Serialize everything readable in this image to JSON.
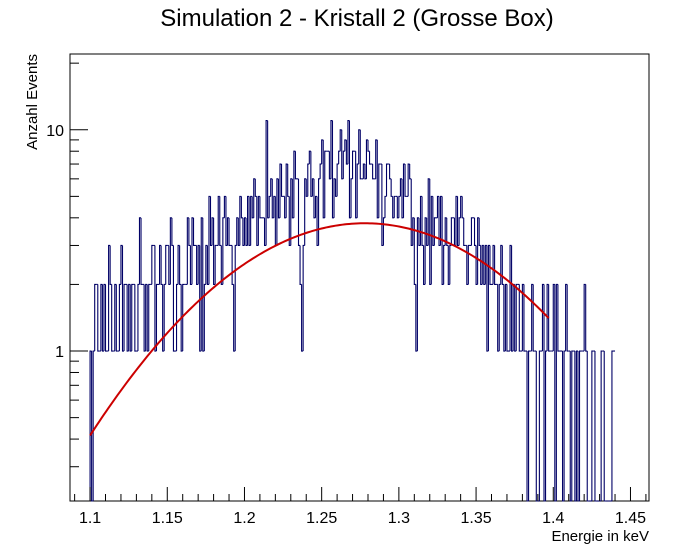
{
  "chart_data": {
    "type": "histogram",
    "title": "Simulation 2 - Kristall 2 (Grosse Box)",
    "xlabel": "Energie in keV",
    "ylabel": "Anzahl Events",
    "xlim": [
      1.087,
      1.462
    ],
    "ylim": [
      0.21,
      22
    ],
    "y_scale": "log",
    "grid": false,
    "x_ticks": [
      "1.1",
      "1.15",
      "1.2",
      "1.25",
      "1.3",
      "1.35",
      "1.4",
      "1.45"
    ],
    "y_ticks": [
      "1",
      "10"
    ],
    "bin_width": 0.001,
    "x_start": 1.1,
    "x_end": 1.462,
    "counts": [
      1,
      0,
      1,
      2,
      2,
      1,
      1,
      2,
      1,
      2,
      1,
      1,
      3,
      2,
      1,
      1,
      2,
      1,
      1,
      2,
      3,
      1,
      2,
      2,
      1,
      2,
      1,
      2,
      2,
      1,
      1,
      2,
      4,
      2,
      2,
      1,
      2,
      1,
      2,
      2,
      3,
      3,
      1,
      2,
      2,
      3,
      2,
      1,
      2,
      3,
      3,
      2,
      4,
      3,
      1,
      1,
      2,
      3,
      2,
      1,
      2,
      2,
      2,
      4,
      3,
      2,
      4,
      3,
      3,
      2,
      3,
      1,
      4,
      1,
      2,
      3,
      2,
      5,
      3,
      4,
      2,
      3,
      3,
      5,
      3,
      2,
      4,
      5,
      3,
      4,
      3,
      3,
      2,
      1,
      3,
      4,
      3,
      5,
      4,
      3,
      4,
      3,
      5,
      3,
      5,
      4,
      6,
      5,
      3,
      5,
      4,
      4,
      4,
      3,
      11,
      4,
      5,
      6,
      4,
      5,
      3,
      6,
      4,
      7,
      5,
      5,
      4,
      7,
      5,
      3,
      6,
      4,
      8,
      6,
      6,
      3,
      2,
      1,
      3,
      6,
      5,
      7,
      8,
      5,
      6,
      4,
      5,
      3,
      6,
      7,
      9,
      4,
      8,
      8,
      8,
      6,
      11,
      4,
      6,
      5,
      7,
      8,
      10,
      6,
      8,
      9,
      7,
      11,
      4,
      6,
      8,
      8,
      4,
      7,
      10,
      6,
      6,
      7,
      6,
      9,
      8,
      7,
      7,
      6,
      6,
      9,
      4,
      7,
      7,
      3,
      4,
      5,
      7,
      7,
      6,
      5,
      4,
      5,
      5,
      4,
      5,
      6,
      4,
      7,
      5,
      5,
      7,
      6,
      3,
      4,
      2,
      1,
      4,
      3,
      5,
      3,
      2,
      4,
      3,
      6,
      2,
      5,
      3,
      4,
      4,
      5,
      3,
      5,
      2,
      3,
      4,
      3,
      2,
      3,
      4,
      4,
      3,
      5,
      3,
      4,
      5,
      4,
      3,
      3,
      2,
      3,
      3,
      4,
      4,
      3,
      2,
      4,
      3,
      2,
      3,
      2,
      3,
      1,
      3,
      2,
      2,
      3,
      2,
      2,
      1,
      2,
      3,
      2,
      1,
      2,
      1,
      1,
      3,
      1,
      2,
      1,
      2,
      2,
      1,
      1,
      2,
      1,
      1,
      0,
      1,
      1,
      2,
      1,
      1,
      0,
      0,
      1,
      1,
      2,
      0,
      1,
      2,
      1,
      1,
      1,
      2,
      0,
      2,
      1,
      1,
      1,
      0,
      1,
      2,
      1,
      1,
      0,
      1,
      1,
      0,
      1,
      0,
      1,
      1,
      1,
      2,
      1,
      0,
      0,
      0,
      1,
      1,
      0,
      0,
      0,
      0,
      1,
      1,
      0,
      0,
      0,
      0,
      0,
      1,
      1
    ],
    "fit": {
      "type": "gaussian",
      "color": "#cc0000",
      "x_range": [
        1.1,
        1.397
      ],
      "constant": 3.78,
      "mean": 1.278,
      "sigma": 0.0847
    },
    "colors": {
      "histogram": "#000066",
      "fit": "#cc0000",
      "frame": "#000000"
    }
  }
}
